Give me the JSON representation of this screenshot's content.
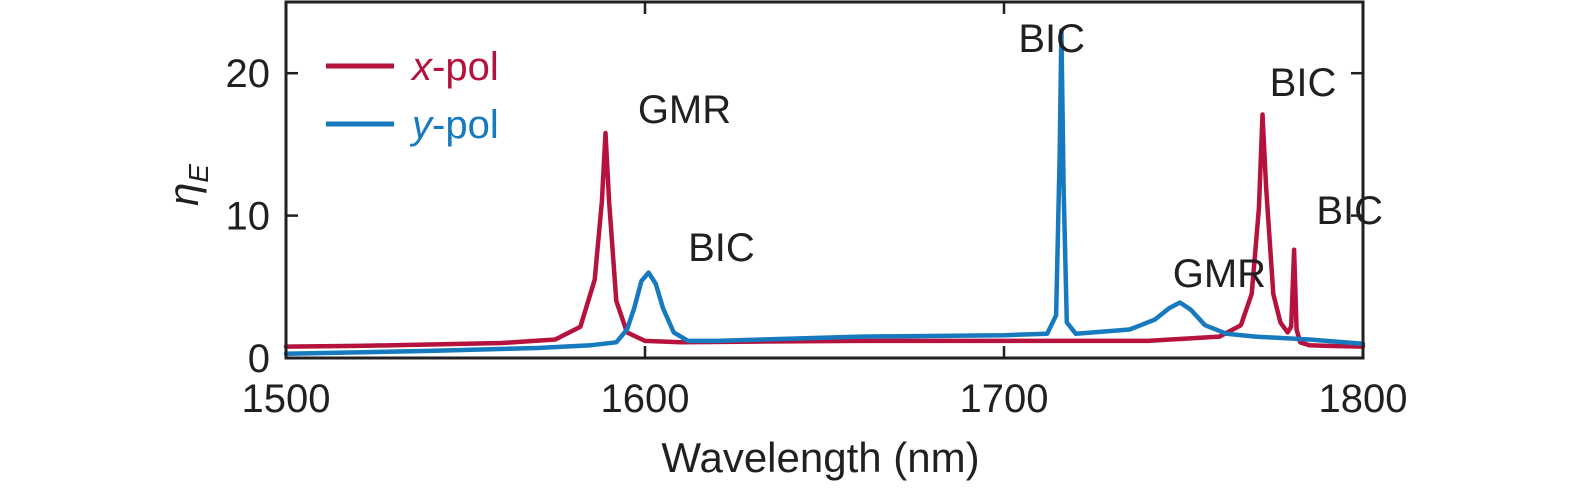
{
  "chart_data": {
    "type": "line",
    "xlabel": "Wavelength (nm)",
    "ylabel_main": "η",
    "ylabel_sub": "E",
    "xlim": [
      1500,
      1800
    ],
    "ylim": [
      0,
      25
    ],
    "x_ticks": [
      1500,
      1600,
      1700,
      1800
    ],
    "y_ticks": [
      0,
      10,
      20
    ],
    "grid": false,
    "legend_position": "top-left",
    "series": [
      {
        "name_italic": "x",
        "name_rest": "-pol",
        "color": "#b5123e",
        "x": [
          1500,
          1520,
          1540,
          1560,
          1575,
          1582,
          1586,
          1588,
          1589,
          1590,
          1592,
          1595,
          1600,
          1610,
          1630,
          1660,
          1700,
          1740,
          1760,
          1766,
          1769,
          1771,
          1772,
          1773,
          1775,
          1777,
          1779,
          1780,
          1780.8,
          1781.5,
          1782.5,
          1785,
          1790,
          1800
        ],
        "y": [
          0.8,
          0.85,
          0.95,
          1.05,
          1.3,
          2.2,
          5.5,
          11.0,
          15.8,
          11.0,
          4.0,
          1.8,
          1.2,
          1.1,
          1.15,
          1.2,
          1.2,
          1.2,
          1.5,
          2.3,
          4.5,
          10.5,
          17.1,
          12.0,
          4.5,
          2.5,
          1.8,
          2.2,
          7.6,
          2.0,
          1.1,
          0.9,
          0.85,
          0.8
        ]
      },
      {
        "name_italic": "y",
        "name_rest": "-pol",
        "color": "#1779be",
        "x": [
          1500,
          1540,
          1570,
          1585,
          1592,
          1595,
          1597,
          1599,
          1601,
          1603,
          1605,
          1608,
          1612,
          1620,
          1660,
          1700,
          1712,
          1714.5,
          1715.5,
          1716,
          1716.6,
          1717.5,
          1720,
          1735,
          1742,
          1746,
          1749,
          1752,
          1756,
          1762,
          1770,
          1785,
          1800
        ],
        "y": [
          0.3,
          0.5,
          0.7,
          0.9,
          1.1,
          2.0,
          3.5,
          5.4,
          6.0,
          5.2,
          3.5,
          1.8,
          1.2,
          1.2,
          1.5,
          1.6,
          1.7,
          3.0,
          14.0,
          23.0,
          12.0,
          2.5,
          1.7,
          2.0,
          2.7,
          3.5,
          3.9,
          3.4,
          2.3,
          1.7,
          1.5,
          1.3,
          1.0
        ]
      }
    ],
    "annotations": [
      {
        "text": "GMR",
        "x": 1598,
        "y": 16.5
      },
      {
        "text": "BIC",
        "x": 1612,
        "y": 6.8
      },
      {
        "text": "BIC",
        "x": 1704,
        "y": 21.5
      },
      {
        "text": "GMR",
        "x": 1747,
        "y": 5.0
      },
      {
        "text": "BIC",
        "x": 1774,
        "y": 18.4
      },
      {
        "text": "BIC",
        "x": 1787,
        "y": 9.4
      }
    ]
  }
}
